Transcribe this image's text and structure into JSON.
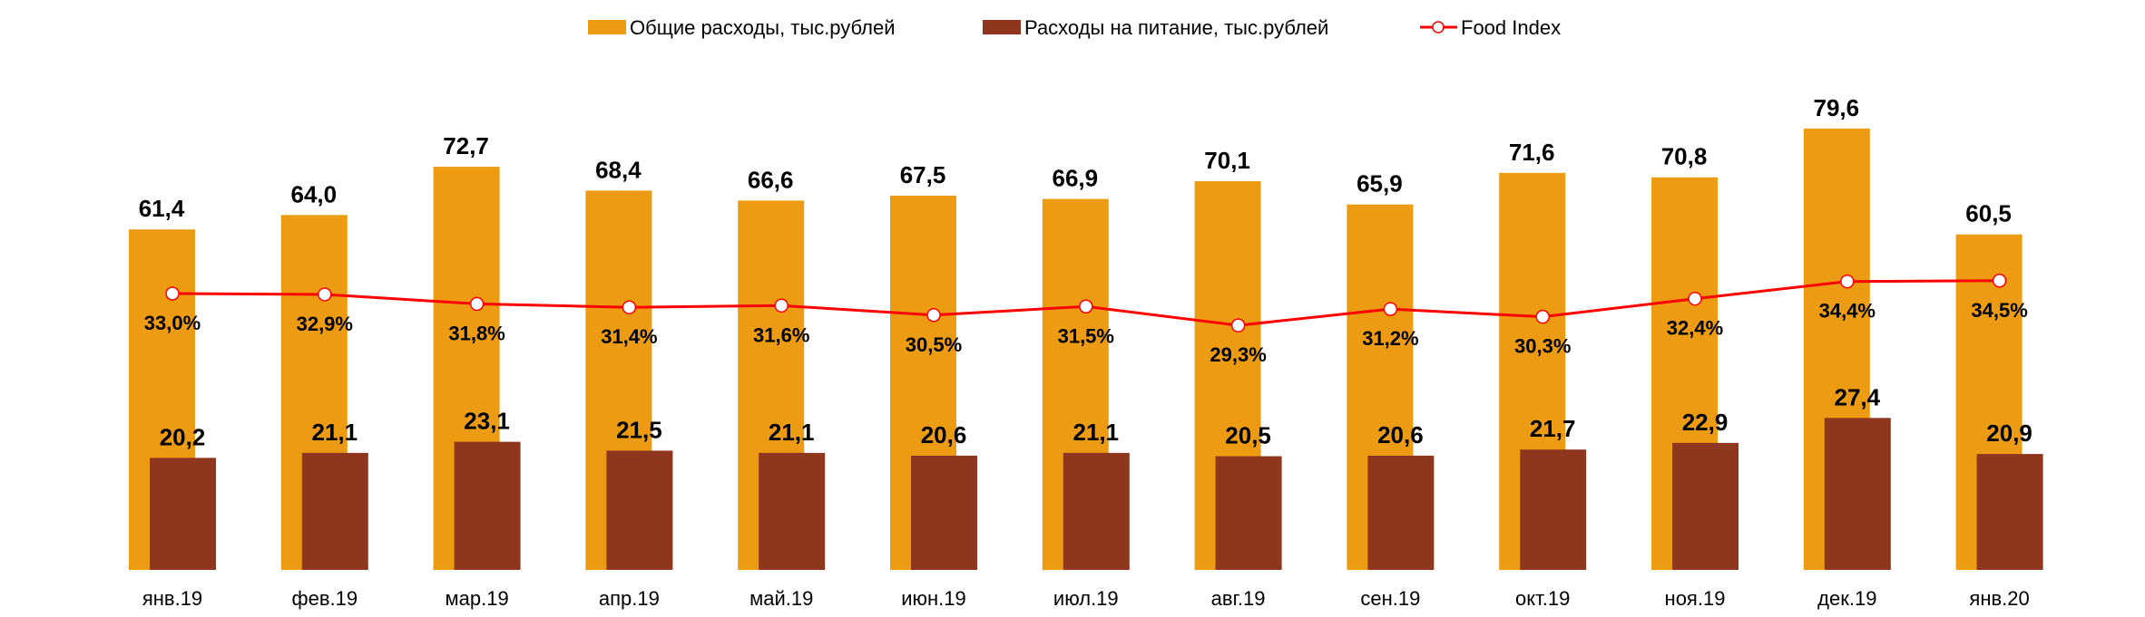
{
  "chart_data": {
    "type": "bar+line",
    "categories": [
      "янв.19",
      "фев.19",
      "мар.19",
      "апр.19",
      "май.19",
      "июн.19",
      "июл.19",
      "авг.19",
      "сен.19",
      "окт.19",
      "ноя.19",
      "дек.19",
      "янв.20"
    ],
    "series": [
      {
        "name": "Общие расходы, тыс.рублей",
        "type": "bar",
        "axis": "primary",
        "color": "#EC9B13",
        "values": [
          61.4,
          64.0,
          72.7,
          68.4,
          66.6,
          67.5,
          66.9,
          70.1,
          65.9,
          71.6,
          70.8,
          79.6,
          60.5
        ],
        "labels": [
          "61,4",
          "64,0",
          "72,7",
          "68,4",
          "66,6",
          "67,5",
          "66,9",
          "70,1",
          "65,9",
          "71,6",
          "70,8",
          "79,6",
          "60,5"
        ]
      },
      {
        "name": "Расходы на питание, тыс.рублей",
        "type": "bar",
        "axis": "primary",
        "color": "#8E361E",
        "values": [
          20.2,
          21.1,
          23.1,
          21.5,
          21.1,
          20.6,
          21.1,
          20.5,
          20.6,
          21.7,
          22.9,
          27.4,
          20.9
        ],
        "labels": [
          "20,2",
          "21,1",
          "23,1",
          "21,5",
          "21,1",
          "20,6",
          "21,1",
          "20,5",
          "20,6",
          "21,7",
          "22,9",
          "27,4",
          "20,9"
        ]
      },
      {
        "name": "Food Index",
        "type": "line",
        "axis": "secondary",
        "color": "#FF0000",
        "values": [
          33.0,
          32.9,
          31.8,
          31.4,
          31.6,
          30.5,
          31.5,
          29.3,
          31.2,
          30.3,
          32.4,
          34.4,
          34.5
        ],
        "labels": [
          "33,0%",
          "32,9%",
          "31,8%",
          "31,4%",
          "31,6%",
          "30,5%",
          "31,5%",
          "29,3%",
          "31,2%",
          "30,3%",
          "32,4%",
          "34,4%",
          "34,5%"
        ]
      }
    ],
    "legend_position": "top",
    "grid": false,
    "ylim": [
      0,
      100
    ]
  }
}
